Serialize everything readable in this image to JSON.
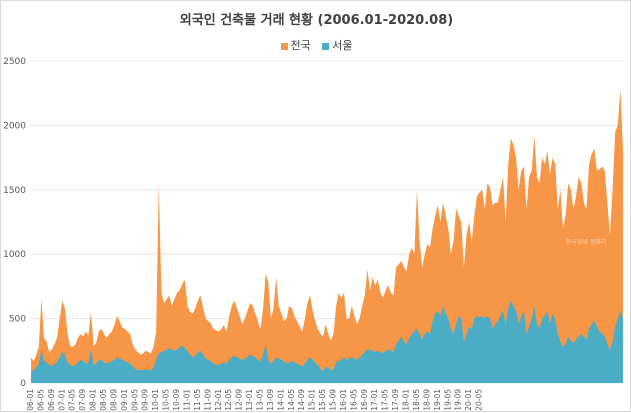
{
  "chart_data": {
    "type": "area",
    "title": "외국인 건축물 거래 현황 (2006.01-2020.08)",
    "xlabel": "",
    "ylabel": "",
    "ylim": [
      0,
      2500
    ],
    "yticks": [
      0,
      500,
      1000,
      1500,
      2000,
      2500
    ],
    "grid": true,
    "legend_placement": "top-center",
    "watermark": "한국경제 정혜리",
    "xtick_labels": [
      "06-01",
      "06-05",
      "06-09",
      "07-01",
      "07-05",
      "07-09",
      "08-01",
      "08-05",
      "08-09",
      "09-01",
      "09-05",
      "09-09",
      "10-01",
      "10-05",
      "10-09",
      "11-01",
      "11-05",
      "11-09",
      "12-01",
      "12-05",
      "12-09",
      "13-01",
      "13-05",
      "13-09",
      "14-01",
      "14-05",
      "14-09",
      "15-01",
      "15-05",
      "15-09",
      "16-01",
      "16-05",
      "16-09",
      "17-01",
      "17-05",
      "17-09",
      "18-01",
      "18-05",
      "18-09",
      "19-01",
      "19-05",
      "19-09",
      "20-01",
      "20-05"
    ],
    "x_start": "2006-01",
    "x_end": "2020-08",
    "series": [
      {
        "name": "전국",
        "color": "#f79646",
        "values": [
          200,
          170,
          220,
          280,
          650,
          350,
          320,
          240,
          260,
          300,
          350,
          500,
          640,
          580,
          380,
          290,
          280,
          300,
          350,
          380,
          360,
          400,
          370,
          550,
          290,
          310,
          400,
          420,
          380,
          350,
          380,
          400,
          450,
          520,
          480,
          430,
          420,
          400,
          380,
          300,
          260,
          240,
          220,
          230,
          250,
          240,
          230,
          280,
          400,
          1550,
          700,
          620,
          650,
          680,
          600,
          650,
          700,
          720,
          770,
          800,
          600,
          550,
          540,
          580,
          640,
          680,
          580,
          500,
          480,
          460,
          420,
          410,
          400,
          420,
          450,
          400,
          520,
          600,
          640,
          580,
          520,
          460,
          500,
          560,
          620,
          600,
          540,
          480,
          420,
          580,
          850,
          780,
          500,
          580,
          820,
          600,
          540,
          480,
          500,
          600,
          580,
          520,
          480,
          440,
          400,
          500,
          620,
          680,
          560,
          480,
          420,
          380,
          360,
          460,
          380,
          330,
          380,
          600,
          700,
          660,
          700,
          500,
          500,
          600,
          520,
          460,
          500,
          600,
          680,
          880,
          720,
          820,
          760,
          800,
          700,
          660,
          720,
          760,
          700,
          680,
          900,
          920,
          950,
          900,
          870,
          1000,
          1050,
          1000,
          1500,
          1100,
          900,
          1000,
          1080,
          1050,
          1200,
          1300,
          1380,
          1250,
          1400,
          1300,
          1200,
          1000,
          1100,
          1350,
          1300,
          1250,
          900,
          1150,
          1250,
          1100,
          1300,
          1450,
          1480,
          1500,
          1350,
          1550,
          1520,
          1380,
          1400,
          1400,
          1500,
          1600,
          1250,
          1700,
          1900,
          1850,
          1750,
          1500,
          1650,
          1680,
          1350,
          1600,
          1650,
          1920,
          1600,
          1550,
          1750,
          1700,
          1800,
          1620,
          1750,
          1700,
          1350,
          1500,
          1200,
          1300,
          1550,
          1500,
          1350,
          1450,
          1600,
          1550,
          1400,
          1350,
          1700,
          1780,
          1820,
          1650,
          1660,
          1680,
          1650,
          1400,
          1150,
          1500,
          1950,
          2000,
          2280,
          1800
        ]
      },
      {
        "name": "서울",
        "color": "#4bacc6",
        "values": [
          90,
          100,
          120,
          150,
          260,
          170,
          160,
          140,
          130,
          150,
          160,
          200,
          240,
          220,
          160,
          140,
          130,
          140,
          160,
          180,
          170,
          150,
          160,
          260,
          140,
          150,
          180,
          180,
          160,
          150,
          160,
          170,
          180,
          200,
          190,
          180,
          170,
          160,
          150,
          130,
          110,
          100,
          100,
          100,
          110,
          100,
          100,
          120,
          180,
          230,
          240,
          250,
          260,
          270,
          260,
          250,
          260,
          280,
          290,
          270,
          250,
          220,
          200,
          210,
          240,
          250,
          220,
          190,
          180,
          170,
          150,
          140,
          140,
          150,
          160,
          150,
          180,
          200,
          210,
          200,
          190,
          180,
          190,
          200,
          220,
          210,
          200,
          180,
          170,
          220,
          300,
          180,
          150,
          170,
          200,
          190,
          180,
          170,
          150,
          160,
          170,
          160,
          150,
          140,
          130,
          150,
          180,
          200,
          180,
          160,
          140,
          110,
          90,
          130,
          120,
          100,
          110,
          160,
          170,
          180,
          200,
          180,
          190,
          200,
          190,
          180,
          200,
          220,
          240,
          260,
          260,
          250,
          240,
          250,
          240,
          230,
          250,
          260,
          250,
          240,
          300,
          330,
          360,
          320,
          300,
          350,
          380,
          400,
          420,
          380,
          340,
          380,
          400,
          380,
          480,
          540,
          560,
          520,
          600,
          540,
          500,
          420,
          380,
          460,
          520,
          500,
          320,
          380,
          440,
          420,
          500,
          520,
          510,
          520,
          500,
          520,
          500,
          420,
          460,
          480,
          520,
          560,
          450,
          580,
          640,
          600,
          560,
          460,
          520,
          560,
          380,
          440,
          500,
          600,
          460,
          420,
          500,
          520,
          560,
          460,
          540,
          500,
          380,
          320,
          280,
          300,
          360,
          330,
          310,
          340,
          360,
          380,
          360,
          340,
          420,
          460,
          480,
          440,
          400,
          380,
          360,
          300,
          260,
          320,
          440,
          500,
          560,
          500
        ]
      }
    ]
  }
}
